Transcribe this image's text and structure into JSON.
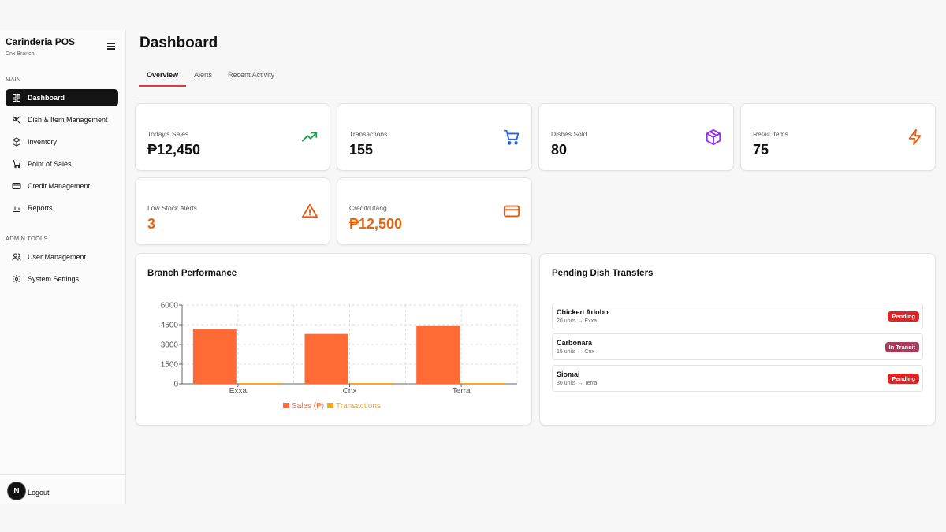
{
  "sidebar": {
    "app_name": "Carinderia POS",
    "branch": "Cnx Branch",
    "main_label": "MAIN",
    "admin_label": "ADMIN TOOLS",
    "main_items": [
      {
        "label": "Dashboard",
        "icon": "grid-icon",
        "active": true
      },
      {
        "label": "Dish & Item Management",
        "icon": "utensils-icon"
      },
      {
        "label": "Inventory",
        "icon": "box-icon"
      },
      {
        "label": "Point of Sales",
        "icon": "cart-icon"
      },
      {
        "label": "Credit Management",
        "icon": "credit-card-icon"
      },
      {
        "label": "Reports",
        "icon": "bar-chart-icon"
      }
    ],
    "admin_items": [
      {
        "label": "User Management",
        "icon": "users-icon"
      },
      {
        "label": "System Settings",
        "icon": "gear-icon"
      }
    ],
    "avatar_letter": "N",
    "logout_label": "Logout"
  },
  "header": {
    "title": "Dashboard",
    "tabs": [
      "Overview",
      "Alerts",
      "Recent Activity"
    ],
    "active_tab": "Overview"
  },
  "stats": [
    {
      "label": "Today's Sales",
      "value": "₱12,450",
      "icon": "trending-up-icon",
      "color": "#16a34a"
    },
    {
      "label": "Transactions",
      "value": "155",
      "icon": "cart-icon",
      "color": "#2563eb"
    },
    {
      "label": "Dishes Sold",
      "value": "80",
      "icon": "package-icon",
      "color": "#9333ea"
    },
    {
      "label": "Retail Items",
      "value": "75",
      "icon": "zap-icon",
      "color": "#ea580c"
    },
    {
      "label": "Low Stock Alerts",
      "value": "3",
      "icon": "alert-triangle-icon",
      "color": "#ea580c"
    },
    {
      "label": "Credit/Utang",
      "value": "₱12,500",
      "icon": "credit-card-icon",
      "color": "#ea580c"
    }
  ],
  "branch_performance": {
    "title": "Branch Performance"
  },
  "chart_data": {
    "type": "bar",
    "categories": [
      "Exxa",
      "Cnx",
      "Terra"
    ],
    "series": [
      {
        "name": "Sales (₱)",
        "values": [
          4200,
          3800,
          4450
        ],
        "color": "#ff6b35"
      },
      {
        "name": "Transactions",
        "values": [
          60,
          45,
          50
        ],
        "color": "#f5a623"
      }
    ],
    "ylim": [
      0,
      6000
    ],
    "yticks": [
      0,
      1500,
      3000,
      4500,
      6000
    ],
    "grid": true,
    "legend": "bottom"
  },
  "transfers": {
    "title": "Pending Dish Transfers",
    "items": [
      {
        "name": "Chicken Adobo",
        "meta": "20 units → Exxa",
        "status": "Pending",
        "color": "#dc2626"
      },
      {
        "name": "Carbonara",
        "meta": "15 units → Cnx",
        "status": "In Transit",
        "color": "#a83a5a"
      },
      {
        "name": "Siomai",
        "meta": "30 units → Terra",
        "status": "Pending",
        "color": "#dc2626"
      }
    ]
  }
}
